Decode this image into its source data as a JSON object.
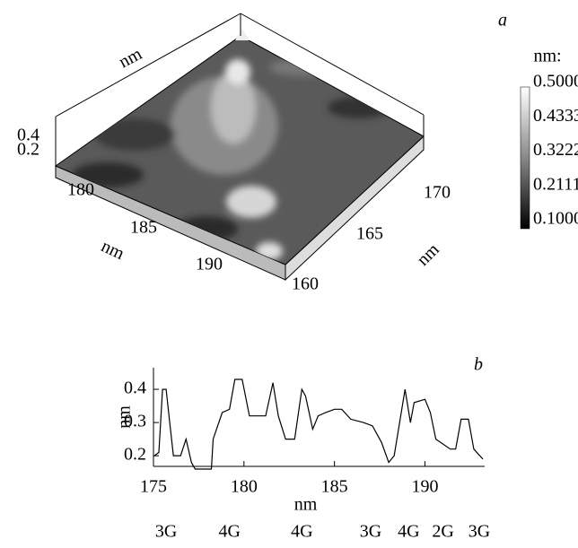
{
  "chart_data": [
    {
      "type": "surface3d",
      "label": "a",
      "colorbar_title": "nm:",
      "colorbar_ticks": [
        {
          "value": 0.5,
          "label": "0.5000"
        },
        {
          "value": 0.4333,
          "label": "0.4333"
        },
        {
          "value": 0.3222,
          "label": "0.3222"
        },
        {
          "value": 0.2111,
          "label": "0.2111"
        },
        {
          "value": 0.1,
          "label": "0.1000"
        }
      ],
      "xticks": [
        180,
        185,
        190
      ],
      "xlabel": "nm",
      "yticks": [
        160,
        165,
        170
      ],
      "ylabel": "nm",
      "zticks": [
        0.2,
        0.4
      ],
      "zlabel": "nm"
    },
    {
      "type": "line",
      "label": "b",
      "xlabel": "nm",
      "ylabel": "nm",
      "xlim": [
        175,
        193.3
      ],
      "ylim": [
        0.168,
        0.465
      ],
      "xticks": [
        175,
        180,
        185,
        190
      ],
      "yticks": [
        0.2,
        0.3,
        0.4
      ],
      "color": "#000000",
      "x": [
        175.05,
        175.3,
        175.5,
        175.7,
        175.9,
        176.1,
        176.5,
        176.8,
        177.1,
        177.3,
        178.2,
        178.3,
        178.8,
        179.2,
        179.5,
        179.9,
        180.3,
        181.2,
        181.6,
        181.9,
        182.3,
        182.8,
        183.2,
        183.4,
        183.8,
        184.1,
        184.5,
        185.0,
        185.4,
        185.9,
        186.6,
        187.1,
        187.6,
        188.0,
        188.3,
        188.9,
        189.2,
        189.4,
        190.0,
        190.3,
        190.6,
        191.4,
        191.7,
        192.0,
        192.4,
        192.7,
        193.2
      ],
      "values": [
        0.2,
        0.21,
        0.4,
        0.4,
        0.3,
        0.2,
        0.2,
        0.25,
        0.18,
        0.16,
        0.16,
        0.25,
        0.33,
        0.34,
        0.43,
        0.43,
        0.32,
        0.32,
        0.42,
        0.32,
        0.25,
        0.25,
        0.4,
        0.38,
        0.28,
        0.32,
        0.33,
        0.34,
        0.34,
        0.31,
        0.3,
        0.29,
        0.24,
        0.18,
        0.2,
        0.4,
        0.3,
        0.36,
        0.37,
        0.33,
        0.25,
        0.22,
        0.22,
        0.31,
        0.31,
        0.22,
        0.19
      ],
      "annotations": [
        {
          "text": "3G",
          "x": 175.7
        },
        {
          "text": "4G",
          "x": 179.2
        },
        {
          "text": "4G",
          "x": 183.2
        },
        {
          "text": "3G",
          "x": 187.0
        },
        {
          "text": "4G",
          "x": 189.1
        },
        {
          "text": "2G",
          "x": 191.0
        },
        {
          "text": "3G",
          "x": 193.0
        }
      ]
    }
  ]
}
